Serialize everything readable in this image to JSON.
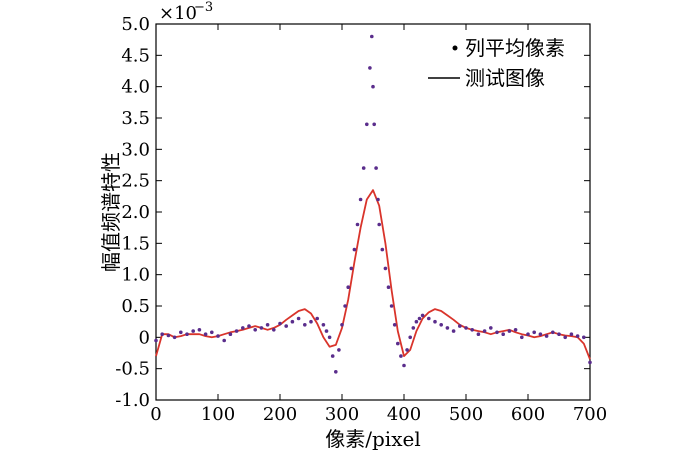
{
  "chart_data": {
    "type": "line",
    "title": "",
    "xlabel": "像素/pixel",
    "ylabel": "幅值频谱特性",
    "y_exponent_label": "×10",
    "y_exponent_power": "−3",
    "xlim": [
      0,
      700
    ],
    "ylim": [
      -1.0,
      5.0
    ],
    "xticks": [
      "0",
      "100",
      "200",
      "300",
      "400",
      "500",
      "600",
      "700"
    ],
    "yticks": [
      "-1.0",
      "-0.5",
      "0",
      "0.5",
      "1.0",
      "1.5",
      "2.0",
      "2.5",
      "3.0",
      "3.5",
      "4.0",
      "4.5",
      "5.0"
    ],
    "grid": false,
    "legend_position": "top-right",
    "series": [
      {
        "name": "列平均像素",
        "style": "scatter",
        "color": "#5a2d8c",
        "x": [
          0,
          10,
          20,
          30,
          40,
          50,
          60,
          70,
          80,
          90,
          100,
          110,
          120,
          130,
          140,
          150,
          160,
          170,
          180,
          190,
          200,
          210,
          220,
          230,
          240,
          250,
          260,
          270,
          275,
          280,
          285,
          290,
          295,
          300,
          305,
          310,
          315,
          320,
          325,
          330,
          335,
          340,
          345,
          348,
          350,
          352,
          355,
          358,
          360,
          365,
          370,
          375,
          380,
          385,
          390,
          395,
          400,
          405,
          410,
          415,
          420,
          425,
          430,
          440,
          450,
          460,
          470,
          480,
          490,
          500,
          510,
          520,
          530,
          540,
          550,
          560,
          570,
          580,
          590,
          600,
          610,
          620,
          630,
          640,
          650,
          660,
          670,
          680,
          690,
          700
        ],
        "y": [
          -0.05,
          0.05,
          0.03,
          0.0,
          0.08,
          0.05,
          0.1,
          0.12,
          0.05,
          0.08,
          0.02,
          -0.05,
          0.05,
          0.1,
          0.15,
          0.18,
          0.12,
          0.15,
          0.2,
          0.12,
          0.22,
          0.18,
          0.25,
          0.3,
          0.2,
          0.25,
          0.3,
          0.2,
          0.1,
          0.0,
          -0.3,
          -0.55,
          -0.2,
          0.2,
          0.5,
          0.8,
          1.1,
          1.4,
          1.8,
          2.2,
          2.7,
          3.4,
          4.3,
          4.8,
          4.0,
          3.4,
          2.7,
          2.2,
          1.8,
          1.4,
          1.1,
          0.8,
          0.5,
          0.2,
          -0.1,
          -0.3,
          -0.45,
          -0.2,
          0.0,
          0.15,
          0.25,
          0.3,
          0.35,
          0.3,
          0.25,
          0.2,
          0.15,
          0.1,
          0.18,
          0.15,
          0.12,
          0.05,
          0.1,
          0.15,
          0.08,
          0.05,
          0.1,
          0.12,
          0.0,
          0.05,
          0.08,
          0.05,
          0.02,
          0.08,
          0.05,
          0.0,
          0.05,
          0.02,
          0.0,
          -0.4
        ]
      },
      {
        "name": "测试图像",
        "style": "line",
        "color": "#d9342b",
        "x": [
          0,
          10,
          20,
          30,
          40,
          50,
          60,
          70,
          80,
          90,
          100,
          110,
          120,
          130,
          140,
          150,
          160,
          170,
          180,
          190,
          200,
          210,
          220,
          230,
          240,
          250,
          260,
          270,
          280,
          290,
          300,
          310,
          320,
          330,
          340,
          350,
          360,
          370,
          380,
          390,
          400,
          410,
          420,
          430,
          440,
          450,
          460,
          470,
          480,
          490,
          500,
          510,
          520,
          530,
          540,
          550,
          560,
          570,
          580,
          590,
          600,
          610,
          620,
          630,
          640,
          650,
          660,
          670,
          680,
          690,
          700
        ],
        "y": [
          -0.3,
          0.05,
          0.05,
          0.0,
          0.02,
          0.05,
          0.05,
          0.05,
          0.02,
          0.0,
          0.02,
          0.05,
          0.08,
          0.1,
          0.12,
          0.15,
          0.18,
          0.15,
          0.12,
          0.15,
          0.2,
          0.28,
          0.35,
          0.42,
          0.45,
          0.38,
          0.22,
          0.0,
          -0.15,
          -0.12,
          0.15,
          0.6,
          1.2,
          1.75,
          2.2,
          2.35,
          2.1,
          1.5,
          0.75,
          0.1,
          -0.3,
          -0.2,
          0.1,
          0.3,
          0.4,
          0.45,
          0.42,
          0.35,
          0.28,
          0.2,
          0.15,
          0.12,
          0.1,
          0.08,
          0.05,
          0.08,
          0.1,
          0.12,
          0.08,
          0.05,
          0.03,
          0.0,
          0.02,
          0.05,
          0.08,
          0.05,
          0.03,
          0.02,
          0.0,
          -0.1,
          -0.35
        ]
      }
    ]
  }
}
